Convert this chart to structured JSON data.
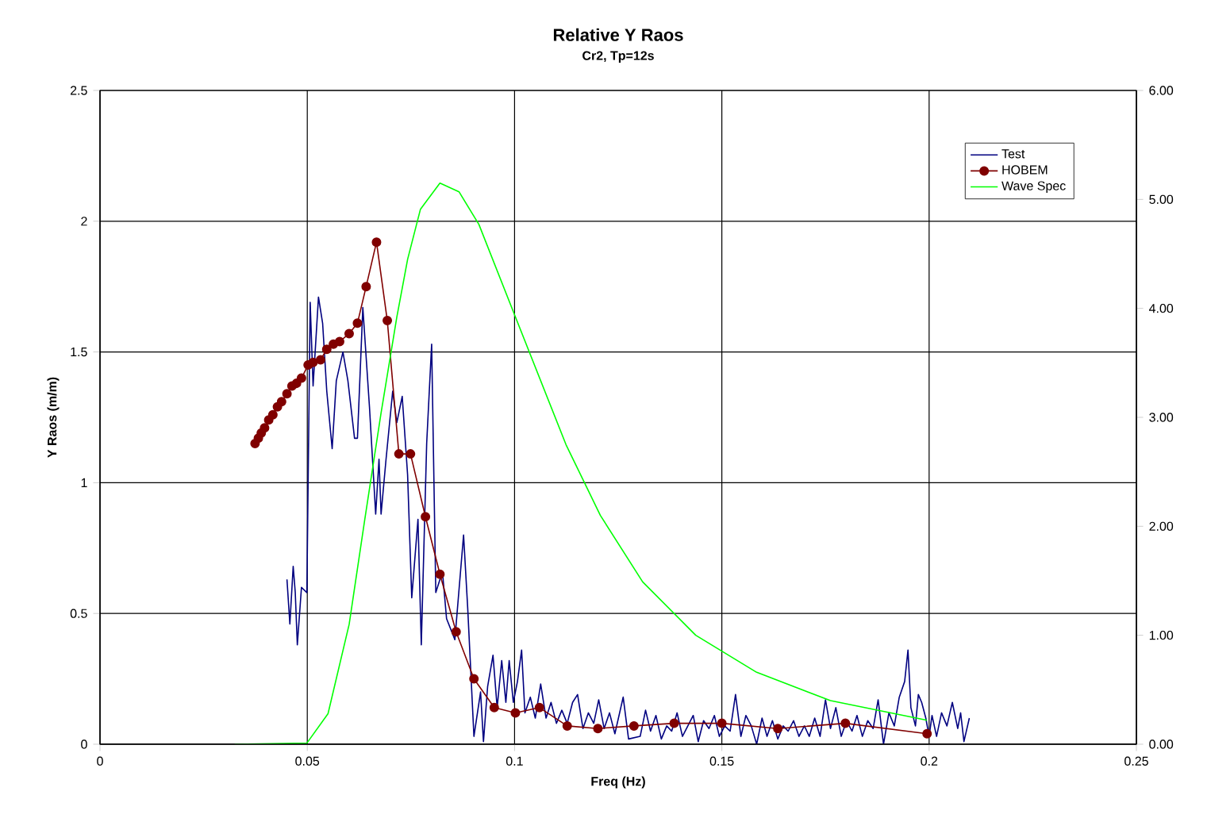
{
  "chart_data": {
    "type": "line",
    "title": "Relative Y Raos",
    "subtitle": "Cr2, Tp=12s",
    "xlabel": "Freq (Hz)",
    "ylabel": "Y Raos  (m/m)",
    "xlim": [
      0,
      0.25
    ],
    "xticks": [
      0,
      0.05,
      0.1,
      0.15,
      0.2,
      0.25
    ],
    "ylim": [
      0,
      2.5
    ],
    "yticks": [
      0,
      0.5,
      1,
      1.5,
      2,
      2.5
    ],
    "y2lim": [
      0,
      6
    ],
    "y2ticks": [
      {
        "value": 0,
        "label": "0.00"
      },
      {
        "value": 1,
        "label": "1.00"
      },
      {
        "value": 2,
        "label": "2.00"
      },
      {
        "value": 3,
        "label": "3.00"
      },
      {
        "value": 4,
        "label": "4.00"
      },
      {
        "value": 5,
        "label": "5.00"
      },
      {
        "value": 6,
        "label": "6.00"
      }
    ],
    "grid": true,
    "legend": "top right",
    "series": [
      {
        "name": "Test",
        "color": "#000080",
        "marker": "none",
        "x": [
          0.0451,
          0.0458,
          0.0466,
          0.0471,
          0.0476,
          0.0486,
          0.0499,
          0.0507,
          0.0514,
          0.0527,
          0.0537,
          0.0547,
          0.056,
          0.057,
          0.0586,
          0.0598,
          0.0614,
          0.0621,
          0.0634,
          0.065,
          0.0665,
          0.0673,
          0.0678,
          0.069,
          0.0706,
          0.0716,
          0.0729,
          0.0742,
          0.0752,
          0.0767,
          0.0775,
          0.0788,
          0.08,
          0.081,
          0.0826,
          0.0836,
          0.0856,
          0.0877,
          0.0887,
          0.0902,
          0.0918,
          0.0925,
          0.0935,
          0.0948,
          0.0958,
          0.0969,
          0.0979,
          0.0987,
          0.0997,
          0.1007,
          0.1017,
          0.1025,
          0.1038,
          0.105,
          0.1063,
          0.1076,
          0.1088,
          0.1101,
          0.1114,
          0.1127,
          0.114,
          0.1152,
          0.1165,
          0.1178,
          0.1191,
          0.1203,
          0.1216,
          0.1229,
          0.1242,
          0.1262,
          0.1275,
          0.1288,
          0.1303,
          0.1316,
          0.1328,
          0.1341,
          0.1354,
          0.1367,
          0.1379,
          0.1392,
          0.1405,
          0.1418,
          0.1431,
          0.1443,
          0.1456,
          0.1469,
          0.1482,
          0.1494,
          0.1507,
          0.152,
          0.1533,
          0.1546,
          0.1558,
          0.1571,
          0.1584,
          0.1597,
          0.1609,
          0.1622,
          0.1635,
          0.1648,
          0.166,
          0.1673,
          0.1686,
          0.1699,
          0.1711,
          0.1724,
          0.1737,
          0.175,
          0.1762,
          0.1775,
          0.1788,
          0.1801,
          0.1814,
          0.1826,
          0.1839,
          0.1852,
          0.1865,
          0.1877,
          0.189,
          0.1903,
          0.1916,
          0.1928,
          0.1941,
          0.1949,
          0.1956,
          0.1967,
          0.1974,
          0.1982,
          0.1992,
          0.2,
          0.2007,
          0.2018,
          0.203,
          0.2043,
          0.2056,
          0.2069,
          0.2076,
          0.2084,
          0.2097
        ],
        "values": [
          0.63,
          0.46,
          0.68,
          0.58,
          0.38,
          0.6,
          0.58,
          1.69,
          1.37,
          1.71,
          1.61,
          1.35,
          1.13,
          1.39,
          1.5,
          1.39,
          1.17,
          1.17,
          1.67,
          1.29,
          0.88,
          1.09,
          0.88,
          1.09,
          1.35,
          1.23,
          1.33,
          1.03,
          0.56,
          0.86,
          0.38,
          1.15,
          1.53,
          0.58,
          0.66,
          0.48,
          0.4,
          0.8,
          0.52,
          0.03,
          0.2,
          0.01,
          0.22,
          0.34,
          0.14,
          0.32,
          0.16,
          0.32,
          0.16,
          0.24,
          0.36,
          0.12,
          0.18,
          0.1,
          0.23,
          0.1,
          0.16,
          0.08,
          0.13,
          0.08,
          0.16,
          0.19,
          0.06,
          0.12,
          0.08,
          0.17,
          0.06,
          0.12,
          0.04,
          0.18,
          0.02,
          null,
          0.03,
          0.13,
          0.05,
          0.11,
          0.02,
          0.07,
          0.05,
          0.12,
          0.03,
          0.07,
          0.11,
          0.01,
          0.09,
          0.06,
          0.11,
          0.03,
          0.07,
          0.05,
          0.19,
          0.03,
          0.11,
          0.07,
          0.0,
          0.1,
          0.03,
          0.09,
          0.02,
          0.07,
          0.05,
          0.09,
          0.03,
          0.07,
          0.03,
          0.1,
          0.03,
          0.17,
          0.06,
          0.14,
          0.03,
          0.09,
          0.05,
          0.11,
          0.03,
          0.09,
          0.06,
          0.17,
          0.0,
          0.12,
          0.07,
          0.18,
          0.24,
          0.36,
          0.14,
          0.07,
          0.19,
          0.16,
          0.1,
          0.03,
          0.11,
          0.03,
          0.12,
          0.07,
          0.16,
          0.06,
          0.12,
          0.01,
          0.1
        ]
      },
      {
        "name": "HOBEM",
        "color": "#800000",
        "marker": "circle",
        "x": [
          0.0374,
          0.0382,
          0.0389,
          0.0397,
          0.0407,
          0.0417,
          0.0428,
          0.0438,
          0.0451,
          0.0463,
          0.0474,
          0.0486,
          0.0502,
          0.0514,
          0.0532,
          0.0547,
          0.0563,
          0.0578,
          0.0601,
          0.0621,
          0.0642,
          0.0667,
          0.0693,
          0.0721,
          0.0749,
          0.0785,
          0.082,
          0.0859,
          0.0902,
          0.0951,
          0.1002,
          0.106,
          0.1127,
          0.1201,
          0.1288,
          0.1385,
          0.15,
          0.1635,
          0.1798,
          0.1995
        ],
        "values": [
          1.15,
          1.17,
          1.19,
          1.21,
          1.24,
          1.26,
          1.29,
          1.31,
          1.34,
          1.37,
          1.38,
          1.4,
          1.45,
          1.46,
          1.47,
          1.51,
          1.53,
          1.54,
          1.57,
          1.61,
          1.75,
          1.92,
          1.62,
          1.11,
          1.11,
          0.87,
          0.65,
          0.43,
          0.25,
          0.14,
          0.12,
          0.14,
          0.07,
          0.06,
          0.07,
          0.08,
          0.08,
          0.06,
          0.08,
          0.04
        ]
      },
      {
        "name": "Wave Spec",
        "color": "#00ff00",
        "marker": "none",
        "axis": "y2",
        "x": [
          0.0325,
          0.0499,
          0.055,
          0.0601,
          0.0639,
          0.0678,
          0.0716,
          0.0742,
          0.0773,
          0.082,
          0.0866,
          0.0914,
          0.0997,
          0.1124,
          0.1207,
          0.1309,
          0.1437,
          0.1584,
          0.1762,
          0.1995
        ],
        "values": [
          0,
          0.01,
          0.28,
          1.1,
          2.07,
          3.04,
          3.92,
          4.45,
          4.91,
          5.15,
          5.07,
          4.77,
          3.97,
          2.75,
          2.1,
          1.49,
          1.0,
          0.66,
          0.4,
          0.22
        ]
      }
    ]
  }
}
